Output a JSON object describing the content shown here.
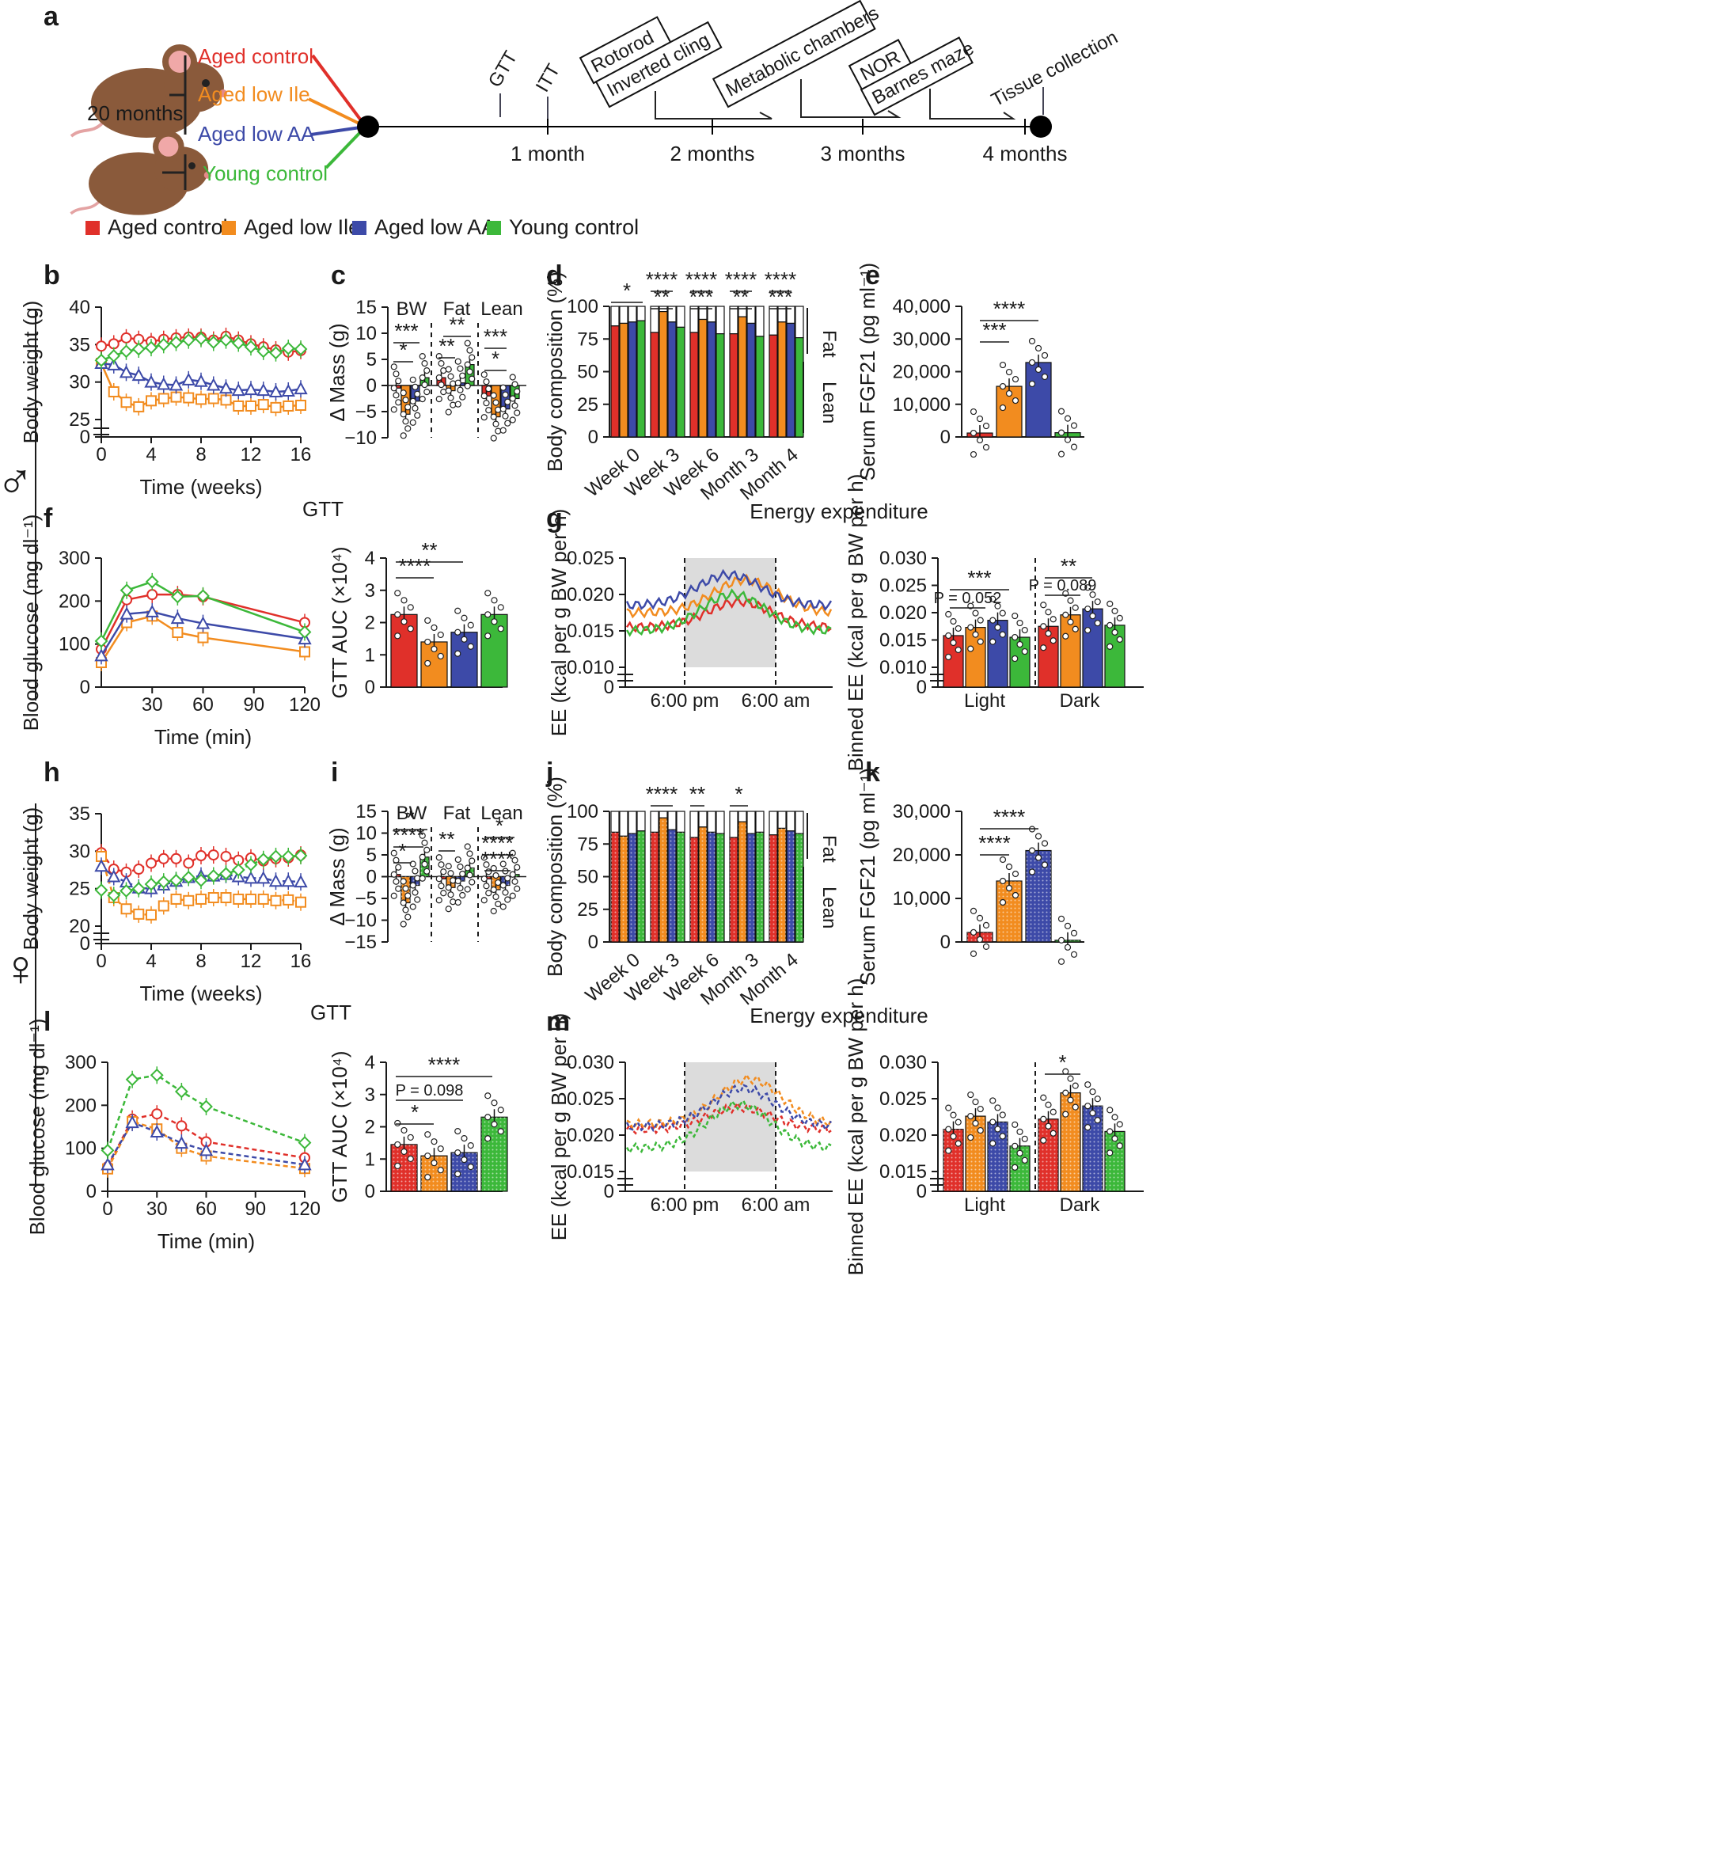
{
  "colors": {
    "aged_control": "#e0302a",
    "aged_low_ile": "#f28c1f",
    "aged_low_aa": "#3d4aa8",
    "young_control": "#3cb83a"
  },
  "panel_letters": [
    "a",
    "b",
    "c",
    "d",
    "e",
    "f",
    "g",
    "h",
    "i",
    "j",
    "k",
    "l",
    "m"
  ],
  "sex_symbols": {
    "male": "♂",
    "female": "♀"
  },
  "timeline": {
    "age_label": "20 months",
    "groups": [
      "Aged control",
      "Aged low Ile",
      "Aged low AA",
      "Young control"
    ],
    "markers": [
      "1 month",
      "2 months",
      "3 months",
      "4 months"
    ],
    "events": [
      "GTT",
      "ITT",
      "Rotorod",
      "Inverted cling",
      "Metabolic chambers",
      "NOR",
      "Barnes maze",
      "Tissue collection"
    ]
  },
  "legend": [
    "Aged control",
    "Aged low Ile",
    "Aged low AA",
    "Young control"
  ],
  "chart_data": [
    {
      "id": "b",
      "type": "line",
      "xlabel": "Time (weeks)",
      "ylabel": "Body weight (g)",
      "x": [
        0,
        1,
        2,
        3,
        4,
        5,
        6,
        7,
        8,
        9,
        10,
        11,
        12,
        13,
        14,
        15,
        16
      ],
      "series": [
        {
          "name": "Aged control",
          "values": [
            34.8,
            35.1,
            35.9,
            35.7,
            35.4,
            35.7,
            35.9,
            36.0,
            36.0,
            35.6,
            36.1,
            35.6,
            35.1,
            34.7,
            34.3,
            34.0,
            34.2
          ]
        },
        {
          "name": "Aged low Ile",
          "values": [
            32.5,
            28.7,
            27.3,
            26.7,
            27.5,
            27.8,
            28.0,
            27.9,
            27.7,
            27.8,
            27.6,
            26.8,
            26.8,
            27.0,
            26.6,
            26.8,
            26.9
          ]
        },
        {
          "name": "Aged low AA",
          "values": [
            32.5,
            32.3,
            31.3,
            30.9,
            30.0,
            29.7,
            29.6,
            30.3,
            30.1,
            29.6,
            29.2,
            28.9,
            29.0,
            28.9,
            28.7,
            28.8,
            29.1
          ]
        },
        {
          "name": "Young control",
          "values": [
            32.9,
            33.5,
            34.1,
            34.4,
            34.6,
            35.0,
            35.3,
            35.6,
            35.8,
            35.3,
            35.6,
            35.2,
            34.7,
            34.1,
            33.9,
            34.5,
            34.4
          ]
        }
      ],
      "yticks": [
        "0",
        "25",
        "30",
        "35",
        "40"
      ],
      "xticks": [
        "0",
        "4",
        "8",
        "12",
        "16"
      ]
    },
    {
      "id": "c",
      "type": "bar",
      "ylabel": "Δ Mass (g)",
      "groups": [
        "BW",
        "Fat",
        "Lean"
      ],
      "series": [
        {
          "name": "Aged control",
          "values": [
            -0.5,
            1.5,
            -2.0
          ]
        },
        {
          "name": "Aged low Ile",
          "values": [
            -5.5,
            -1.0,
            -6.0
          ]
        },
        {
          "name": "Aged low AA",
          "values": [
            -3.0,
            0.5,
            -4.5
          ]
        },
        {
          "name": "Young control",
          "values": [
            1.5,
            4.0,
            -2.5
          ]
        }
      ],
      "yticks": [
        "−10",
        "−5",
        "0",
        "5",
        "10",
        "15"
      ],
      "annotations": [
        "***",
        "*",
        "**",
        "**",
        "***",
        "*"
      ]
    },
    {
      "id": "d",
      "type": "bar",
      "ylabel": "Body composition (%)",
      "categories": [
        "Week 0",
        "Week 3",
        "Week 6",
        "Month 3",
        "Month 4"
      ],
      "series": [
        {
          "name": "Aged control",
          "values": [
            85,
            80,
            80,
            79,
            78
          ]
        },
        {
          "name": "Aged low Ile",
          "values": [
            87,
            96,
            90,
            92,
            88
          ]
        },
        {
          "name": "Aged low AA",
          "values": [
            88,
            88,
            88,
            87,
            87
          ]
        },
        {
          "name": "Young control",
          "values": [
            89,
            84,
            79,
            77,
            76
          ]
        }
      ],
      "yticks": [
        "0",
        "25",
        "50",
        "75",
        "100"
      ],
      "side_labels": [
        "Fat",
        "Lean"
      ],
      "annotations": [
        "*",
        "****",
        "**",
        "****",
        "***",
        "****",
        "**",
        "****",
        "***"
      ]
    },
    {
      "id": "e",
      "type": "bar",
      "ylabel": "Serum FGF21 (pg ml⁻¹)",
      "categories": [
        "Aged control",
        "Aged low Ile",
        "Aged low AA",
        "Young control"
      ],
      "values": [
        1200,
        15500,
        22800,
        1300
      ],
      "yticks": [
        "0",
        "10,000",
        "20,000",
        "30,000",
        "40,000"
      ],
      "annotations": [
        "***",
        "****"
      ]
    },
    {
      "id": "f",
      "type": "line",
      "title": "GTT",
      "xlabel": "Time (min)",
      "ylabel": "Blood glucose (mg dl⁻¹)",
      "x": [
        0,
        15,
        30,
        45,
        60,
        120
      ],
      "series": [
        {
          "name": "Aged control",
          "values": [
            88,
            203,
            215,
            215,
            210,
            150
          ]
        },
        {
          "name": "Aged low Ile",
          "values": [
            57,
            150,
            165,
            127,
            115,
            82
          ]
        },
        {
          "name": "Aged low AA",
          "values": [
            73,
            170,
            175,
            160,
            148,
            112
          ]
        },
        {
          "name": "Young control",
          "values": [
            107,
            225,
            245,
            210,
            212,
            128
          ]
        }
      ],
      "yticks": [
        "0",
        "100",
        "200",
        "300"
      ],
      "xticks": [
        "30",
        "60",
        "90",
        "120"
      ]
    },
    {
      "id": "f2",
      "type": "bar",
      "ylabel": "GTT AUC (×10⁴)",
      "categories": [
        "Aged control",
        "Aged low Ile",
        "Aged low AA",
        "Young control"
      ],
      "values": [
        2.25,
        1.4,
        1.7,
        2.25
      ],
      "yticks": [
        "0",
        "1",
        "2",
        "3",
        "4"
      ],
      "annotations": [
        "**",
        "****"
      ]
    },
    {
      "id": "g",
      "type": "line",
      "title": "Energy expenditure",
      "ylabel": "EE (kcal per g BW per h)",
      "xticks": [
        "6:00 pm",
        "6:00 am"
      ],
      "yticks": [
        "0",
        "0.010",
        "0.015",
        "0.020",
        "0.025"
      ]
    },
    {
      "id": "g2",
      "type": "bar",
      "ylabel": "Binned EE (kcal per g BW per h)",
      "groups": [
        "Light",
        "Dark"
      ],
      "series": [
        {
          "name": "Aged control",
          "values": [
            0.0158,
            0.0175
          ]
        },
        {
          "name": "Aged low Ile",
          "values": [
            0.0173,
            0.0196
          ]
        },
        {
          "name": "Aged low AA",
          "values": [
            0.0186,
            0.0207
          ]
        },
        {
          "name": "Young control",
          "values": [
            0.0155,
            0.0177
          ]
        }
      ],
      "yticks": [
        "0",
        "0.010",
        "0.015",
        "0.020",
        "0.025",
        "0.030"
      ],
      "annotations": [
        "***",
        "P = 0.052",
        "**",
        "P = 0.089"
      ]
    },
    {
      "id": "h",
      "type": "line",
      "xlabel": "Time (weeks)",
      "ylabel": "Body weight (g)",
      "x": [
        0,
        1,
        2,
        3,
        4,
        5,
        6,
        7,
        8,
        9,
        10,
        11,
        12,
        13,
        14,
        15,
        16
      ],
      "series": [
        {
          "name": "Aged control",
          "values": [
            29.8,
            27.6,
            27.2,
            27.6,
            28.4,
            29.0,
            29.0,
            28.4,
            29.4,
            29.5,
            29.3,
            28.8,
            29.1,
            28.7,
            29.0,
            29.1,
            29.5
          ]
        },
        {
          "name": "Aged low Ile",
          "values": [
            29.3,
            23.8,
            22.3,
            21.6,
            21.5,
            22.7,
            23.6,
            23.4,
            23.6,
            23.8,
            23.8,
            23.6,
            23.6,
            23.6,
            23.4,
            23.5,
            23.2
          ]
        },
        {
          "name": "Aged low AA",
          "values": [
            28.0,
            26.6,
            25.9,
            25.1,
            25.0,
            25.5,
            26.0,
            26.5,
            26.7,
            26.7,
            26.9,
            26.6,
            26.4,
            26.4,
            26.0,
            26.0,
            25.9
          ]
        },
        {
          "name": "Young control",
          "values": [
            24.8,
            24.1,
            24.7,
            25.0,
            25.6,
            25.9,
            26.1,
            26.5,
            26.1,
            26.7,
            27.0,
            27.5,
            28.2,
            28.9,
            29.3,
            29.3,
            29.4
          ]
        }
      ],
      "yticks": [
        "0",
        "20",
        "25",
        "30",
        "35"
      ],
      "xticks": [
        "0",
        "4",
        "8",
        "12",
        "16"
      ]
    },
    {
      "id": "i",
      "type": "bar",
      "ylabel": "Δ Mass (g)",
      "groups": [
        "BW",
        "Fat",
        "Lean"
      ],
      "series": [
        {
          "name": "Aged control",
          "values": [
            0.5,
            -0.5,
            -0.5
          ]
        },
        {
          "name": "Aged low Ile",
          "values": [
            -6.0,
            -2.5,
            -3.0
          ]
        },
        {
          "name": "Aged low AA",
          "values": [
            -2.0,
            -1.0,
            -2.0
          ]
        },
        {
          "name": "Young control",
          "values": [
            4.5,
            2.0,
            0.5
          ]
        }
      ],
      "yticks": [
        "−15",
        "−10",
        "−5",
        "0",
        "5",
        "10",
        "15"
      ],
      "annotations": [
        "*",
        "****",
        "*",
        "**",
        "*",
        "****",
        "****"
      ]
    },
    {
      "id": "j",
      "type": "bar",
      "ylabel": "Body composition (%)",
      "categories": [
        "Week 0",
        "Week 3",
        "Week 6",
        "Month 3",
        "Month 4"
      ],
      "series": [
        {
          "name": "Aged control",
          "values": [
            84,
            84,
            80,
            80,
            82
          ]
        },
        {
          "name": "Aged low Ile",
          "values": [
            81,
            95,
            88,
            92,
            87
          ]
        },
        {
          "name": "Aged low AA",
          "values": [
            83,
            86,
            84,
            83,
            85
          ]
        },
        {
          "name": "Young control",
          "values": [
            85,
            84,
            83,
            84,
            83
          ]
        }
      ],
      "yticks": [
        "0",
        "25",
        "50",
        "75",
        "100"
      ],
      "side_labels": [
        "Fat",
        "Lean"
      ],
      "annotations": [
        "****",
        "**",
        "*"
      ]
    },
    {
      "id": "k",
      "type": "bar",
      "ylabel": "Serum FGF21 (pg ml⁻¹)",
      "categories": [
        "Aged control",
        "Aged low Ile",
        "Aged low AA",
        "Young control"
      ],
      "values": [
        2200,
        14000,
        21000,
        400
      ],
      "yticks": [
        "0",
        "10,000",
        "20,000",
        "30,000"
      ],
      "annotations": [
        "****",
        "****"
      ]
    },
    {
      "id": "l",
      "type": "line",
      "title": "GTT",
      "xlabel": "Time (min)",
      "ylabel": "Blood glucose (mg dl⁻¹)",
      "x": [
        0,
        15,
        30,
        45,
        60,
        120
      ],
      "series": [
        {
          "name": "Aged control",
          "values": [
            57,
            168,
            180,
            152,
            115,
            78
          ]
        },
        {
          "name": "Aged low Ile",
          "values": [
            52,
            162,
            145,
            100,
            82,
            53
          ]
        },
        {
          "name": "Aged low AA",
          "values": [
            62,
            160,
            138,
            112,
            95,
            62
          ]
        },
        {
          "name": "Young control",
          "values": [
            95,
            260,
            270,
            232,
            197,
            113
          ]
        }
      ],
      "yticks": [
        "0",
        "100",
        "200",
        "300"
      ],
      "xticks": [
        "0",
        "30",
        "60",
        "90",
        "120"
      ]
    },
    {
      "id": "l2",
      "type": "bar",
      "ylabel": "GTT AUC (×10⁴)",
      "categories": [
        "Aged control",
        "Aged low Ile",
        "Aged low AA",
        "Young control"
      ],
      "values": [
        1.45,
        1.1,
        1.2,
        2.3
      ],
      "yticks": [
        "0",
        "1",
        "2",
        "3",
        "4"
      ],
      "annotations": [
        "****",
        "P = 0.098",
        "*"
      ]
    },
    {
      "id": "m",
      "type": "line",
      "title": "Energy expenditure",
      "ylabel": "EE (kcal per g BW per h)",
      "xticks": [
        "6:00 pm",
        "6:00 am"
      ],
      "yticks": [
        "0",
        "0.015",
        "0.020",
        "0.025",
        "0.030"
      ]
    },
    {
      "id": "m2",
      "type": "bar",
      "ylabel": "Binned EE (kcal per g BW per h)",
      "groups": [
        "Light",
        "Dark"
      ],
      "series": [
        {
          "name": "Aged control",
          "values": [
            0.0208,
            0.0222
          ]
        },
        {
          "name": "Aged low Ile",
          "values": [
            0.0226,
            0.0258
          ]
        },
        {
          "name": "Aged low AA",
          "values": [
            0.0218,
            0.024
          ]
        },
        {
          "name": "Young control",
          "values": [
            0.0185,
            0.0205
          ]
        }
      ],
      "yticks": [
        "0",
        "0.015",
        "0.020",
        "0.025",
        "0.030"
      ],
      "annotations": [
        "*"
      ]
    }
  ]
}
